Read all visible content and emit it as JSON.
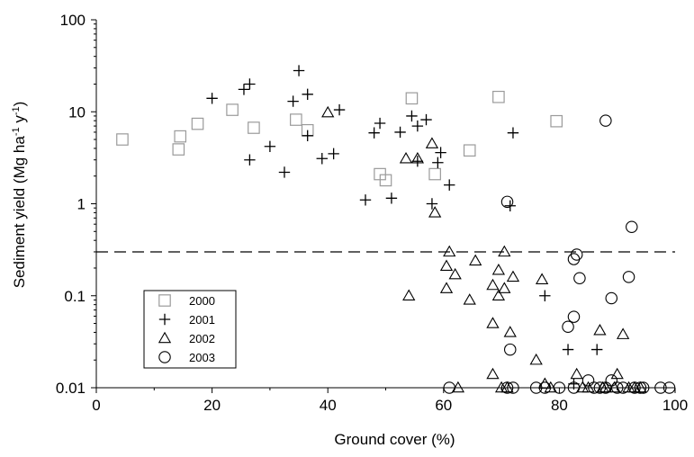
{
  "chart_data": {
    "type": "scatter",
    "xlabel": "Ground cover (%)",
    "ylabel_main": "Sediment yield (Mg ha",
    "ylabel_sup1": "-1",
    "ylabel_mid": " y",
    "ylabel_sup2": "-1",
    "ylabel_end": ")",
    "xlim": [
      0,
      100
    ],
    "ylim": [
      0.01,
      100
    ],
    "yscale": "log",
    "x_ticks": [
      0,
      20,
      40,
      60,
      80,
      100
    ],
    "x_tick_labels": [
      "0",
      "20",
      "40",
      "60",
      "80",
      "100"
    ],
    "y_ticks": [
      0.01,
      0.1,
      1,
      10,
      100
    ],
    "y_tick_labels": [
      "0.01",
      "0.1",
      "1",
      "10",
      "100"
    ],
    "grid": false,
    "legend_position": "bottom-left",
    "threshold_line": 0.3,
    "series": [
      {
        "name": "2000",
        "marker": "square",
        "color": "#9a9a9a",
        "points": [
          [
            4.5,
            5
          ],
          [
            14.2,
            3.9
          ],
          [
            14.5,
            5.4
          ],
          [
            17.5,
            7.4
          ],
          [
            23.5,
            10.5
          ],
          [
            27.2,
            6.7
          ],
          [
            34.5,
            8.2
          ],
          [
            36.5,
            6.3
          ],
          [
            49,
            2.1
          ],
          [
            50,
            1.8
          ],
          [
            54.5,
            14
          ],
          [
            58.5,
            2.1
          ],
          [
            64.5,
            3.8
          ],
          [
            69.5,
            14.5
          ],
          [
            79.5,
            7.9
          ]
        ]
      },
      {
        "name": "2001",
        "marker": "plus",
        "color": "#000000",
        "points": [
          [
            20,
            14
          ],
          [
            25.5,
            17.5
          ],
          [
            26.5,
            20
          ],
          [
            26.5,
            3
          ],
          [
            30,
            4.2
          ],
          [
            32.5,
            2.2
          ],
          [
            34,
            13
          ],
          [
            35,
            28
          ],
          [
            36.5,
            15.5
          ],
          [
            36.5,
            5.5
          ],
          [
            39,
            3.1
          ],
          [
            41,
            3.5
          ],
          [
            42,
            10.5
          ],
          [
            46.5,
            1.1
          ],
          [
            48,
            5.9
          ],
          [
            49,
            7.5
          ],
          [
            51,
            1.15
          ],
          [
            52.5,
            6
          ],
          [
            54.5,
            9
          ],
          [
            55.5,
            2.9
          ],
          [
            55.5,
            7
          ],
          [
            57,
            8.2
          ],
          [
            58,
            1
          ],
          [
            59,
            2.8
          ],
          [
            59.5,
            3.6
          ],
          [
            61,
            1.6
          ],
          [
            71.5,
            0.95
          ],
          [
            72,
            5.9
          ],
          [
            77.5,
            0.1
          ],
          [
            81.5,
            0.026
          ],
          [
            82.5,
            0.011
          ],
          [
            86.5,
            0.026
          ]
        ]
      },
      {
        "name": "2002",
        "marker": "triangle",
        "color": "#000000",
        "points": [
          [
            40,
            9.8
          ],
          [
            53.5,
            3.1
          ],
          [
            55.5,
            3.1
          ],
          [
            58,
            4.5
          ],
          [
            58.5,
            0.8
          ],
          [
            54,
            0.1
          ],
          [
            60.5,
            0.21
          ],
          [
            61,
            0.3
          ],
          [
            60.5,
            0.12
          ],
          [
            62,
            0.17
          ],
          [
            62.5,
            0.01
          ],
          [
            64.5,
            0.09
          ],
          [
            65.5,
            0.24
          ],
          [
            68.5,
            0.13
          ],
          [
            68.5,
            0.05
          ],
          [
            68.5,
            0.014
          ],
          [
            69.5,
            0.19
          ],
          [
            69.5,
            0.1
          ],
          [
            70,
            0.01
          ],
          [
            70.5,
            0.12
          ],
          [
            70.5,
            0.3
          ],
          [
            71,
            0.01
          ],
          [
            71.5,
            0.04
          ],
          [
            72,
            0.16
          ],
          [
            76,
            0.02
          ],
          [
            77,
            0.15
          ],
          [
            77.5,
            0.011
          ],
          [
            78.5,
            0.01
          ],
          [
            83,
            0.014
          ],
          [
            84,
            0.01
          ],
          [
            85,
            0.01
          ],
          [
            87,
            0.042
          ],
          [
            87.5,
            0.01
          ],
          [
            88,
            0.01
          ],
          [
            89.5,
            0.01
          ],
          [
            90,
            0.014
          ],
          [
            91,
            0.038
          ],
          [
            92,
            0.01
          ],
          [
            93,
            0.01
          ],
          [
            94,
            0.01
          ]
        ]
      },
      {
        "name": "2003",
        "marker": "circle",
        "color": "#000000",
        "points": [
          [
            71,
            1.05
          ],
          [
            88,
            8
          ],
          [
            92.5,
            0.56
          ],
          [
            82.5,
            0.25
          ],
          [
            83,
            0.28
          ],
          [
            83.5,
            0.155
          ],
          [
            89,
            0.094
          ],
          [
            92,
            0.16
          ],
          [
            81.5,
            0.046
          ],
          [
            82.5,
            0.059
          ],
          [
            71.5,
            0.026
          ],
          [
            61,
            0.01
          ],
          [
            71,
            0.01
          ],
          [
            72,
            0.01
          ],
          [
            76,
            0.01
          ],
          [
            77.5,
            0.01
          ],
          [
            80,
            0.01
          ],
          [
            82.5,
            0.01
          ],
          [
            85,
            0.012
          ],
          [
            86,
            0.01
          ],
          [
            87,
            0.01
          ],
          [
            88,
            0.01
          ],
          [
            89,
            0.012
          ],
          [
            90,
            0.01
          ],
          [
            91,
            0.01
          ],
          [
            93,
            0.01
          ],
          [
            94,
            0.01
          ],
          [
            94.5,
            0.01
          ],
          [
            97.5,
            0.01
          ],
          [
            99,
            0.01
          ]
        ]
      }
    ]
  }
}
